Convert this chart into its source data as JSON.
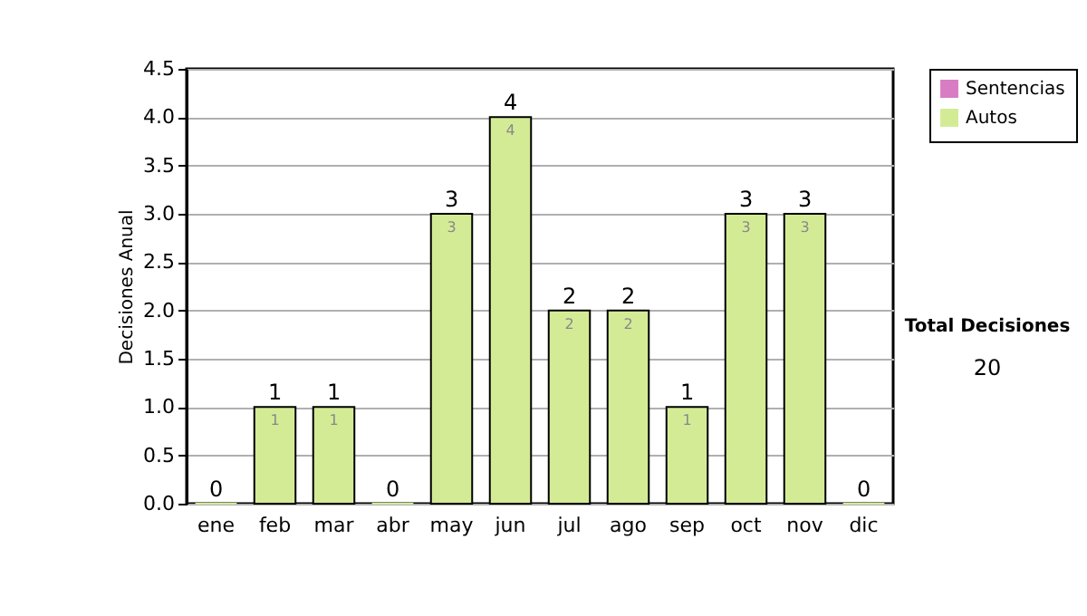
{
  "chart_data": {
    "type": "bar",
    "stacked": true,
    "ylabel": "Decisiones Anual",
    "categories": [
      "ene",
      "feb",
      "mar",
      "abr",
      "may",
      "jun",
      "jul",
      "ago",
      "sep",
      "oct",
      "nov",
      "dic"
    ],
    "series": [
      {
        "name": "Sentencias",
        "color": "#d87cc4",
        "values": [
          0,
          0,
          0,
          0,
          0,
          0,
          0,
          0,
          0,
          0,
          0,
          0
        ]
      },
      {
        "name": "Autos",
        "color": "#d4eb96",
        "values": [
          0,
          1,
          1,
          0,
          3,
          4,
          2,
          2,
          1,
          3,
          3,
          0
        ],
        "value_labels": [
          null,
          "1",
          "1",
          null,
          "3",
          "4",
          "2",
          "2",
          "1",
          "3",
          "3",
          null
        ]
      }
    ],
    "totals": [
      "0",
      "1",
      "1",
      "0",
      "3",
      "4",
      "2",
      "2",
      "1",
      "3",
      "3",
      "0"
    ],
    "ylim": [
      0,
      4.5
    ],
    "yticks": [
      {
        "value": 0,
        "label": "0.0"
      },
      0.5,
      {
        "value": 1,
        "label": "1.0"
      },
      1.5,
      {
        "value": 2,
        "label": "2.0"
      },
      2.5,
      {
        "value": 3,
        "label": "3.0"
      },
      3.5,
      {
        "value": 4,
        "label": "4.0"
      },
      4.5
    ],
    "grid": "y",
    "legend": "right",
    "annotations": [
      "Total Decisiones",
      "20"
    ]
  }
}
